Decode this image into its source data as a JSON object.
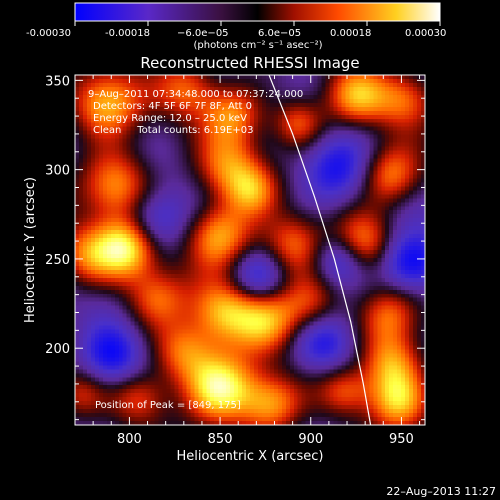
{
  "chart_data": {
    "type": "heatmap",
    "title": "Reconstructed RHESSI Image",
    "xlabel": "Heliocentric X (arcsec)",
    "ylabel": "Heliocentric Y (arcsec)",
    "xlim": [
      770,
      963
    ],
    "ylim": [
      157,
      353
    ],
    "x_ticks": [
      {
        "value": 800,
        "label": "800"
      },
      {
        "value": 850,
        "label": "850"
      },
      {
        "value": 900,
        "label": "900"
      },
      {
        "value": 950,
        "label": "950"
      }
    ],
    "y_ticks": [
      {
        "value": 200,
        "label": "200"
      },
      {
        "value": 250,
        "label": "250"
      },
      {
        "value": 300,
        "label": "300"
      },
      {
        "value": 350,
        "label": "350"
      }
    ],
    "colorbar": {
      "range": [
        -0.0003,
        0.0003
      ],
      "tick_labels": [
        "-0.00030",
        "-0.00018",
        "−6.0e−05",
        "6.0e−05",
        "0.00018",
        "0.00030"
      ],
      "unit_label": "(photons cm⁻² s⁻¹ asec⁻²)",
      "colors": [
        "#0000ff",
        "#6a2dc8",
        "#000000",
        "#ff4a00",
        "#ffff40",
        "#ffffff"
      ]
    },
    "annotations": [
      "9–Aug–2011 07:34:48.000 to 07:37:24.000",
      "Detectors: 4F 5F 6F 7F 8F, Att 0",
      "Energy Range: 12.0 – 25.0 keV",
      "Clean     Total counts: 6.19E+03",
      "Position of Peak = [849, 175]"
    ],
    "limb_curve": [
      [
        877,
        353
      ],
      [
        890,
        320
      ],
      [
        902,
        285
      ],
      [
        913,
        250
      ],
      [
        922,
        215
      ],
      [
        929,
        180
      ],
      [
        933,
        157
      ]
    ],
    "blobs": [
      {
        "x": 787,
        "y": 337,
        "amp": 1.0,
        "w": 14
      },
      {
        "x": 832,
        "y": 346,
        "amp": 0.7,
        "w": 12
      },
      {
        "x": 857,
        "y": 331,
        "amp": 0.8,
        "w": 12
      },
      {
        "x": 925,
        "y": 341,
        "amp": 0.85,
        "w": 12
      },
      {
        "x": 952,
        "y": 340,
        "amp": 0.7,
        "w": 12
      },
      {
        "x": 793,
        "y": 291,
        "amp": 0.9,
        "w": 14
      },
      {
        "x": 856,
        "y": 301,
        "amp": 0.75,
        "w": 13
      },
      {
        "x": 893,
        "y": 326,
        "amp": 0.7,
        "w": 10
      },
      {
        "x": 944,
        "y": 297,
        "amp": 0.85,
        "w": 12
      },
      {
        "x": 914,
        "y": 300,
        "amp": -0.6,
        "w": 13
      },
      {
        "x": 928,
        "y": 258,
        "amp": 0.85,
        "w": 12
      },
      {
        "x": 955,
        "y": 248,
        "amp": -0.9,
        "w": 12
      },
      {
        "x": 916,
        "y": 250,
        "amp": -0.7,
        "w": 10
      },
      {
        "x": 814,
        "y": 272,
        "amp": -0.6,
        "w": 12
      },
      {
        "x": 775,
        "y": 252,
        "amp": 0.7,
        "w": 12
      },
      {
        "x": 798,
        "y": 256,
        "amp": 1.15,
        "w": 12
      },
      {
        "x": 850,
        "y": 263,
        "amp": 1.0,
        "w": 13
      },
      {
        "x": 868,
        "y": 288,
        "amp": 0.6,
        "w": 10
      },
      {
        "x": 890,
        "y": 258,
        "amp": 0.7,
        "w": 12
      },
      {
        "x": 815,
        "y": 228,
        "amp": 0.7,
        "w": 12
      },
      {
        "x": 852,
        "y": 220,
        "amp": 0.9,
        "w": 13
      },
      {
        "x": 876,
        "y": 215,
        "amp": 0.75,
        "w": 12
      },
      {
        "x": 899,
        "y": 225,
        "amp": 0.7,
        "w": 12
      },
      {
        "x": 944,
        "y": 218,
        "amp": 0.75,
        "w": 12
      },
      {
        "x": 870,
        "y": 240,
        "amp": -0.5,
        "w": 10
      },
      {
        "x": 790,
        "y": 195,
        "amp": -0.7,
        "w": 12
      },
      {
        "x": 830,
        "y": 198,
        "amp": 0.75,
        "w": 12
      },
      {
        "x": 907,
        "y": 203,
        "amp": -0.6,
        "w": 12
      },
      {
        "x": 945,
        "y": 192,
        "amp": 0.85,
        "w": 12
      },
      {
        "x": 948,
        "y": 170,
        "amp": 0.9,
        "w": 12
      },
      {
        "x": 851,
        "y": 178,
        "amp": 1.3,
        "w": 14
      },
      {
        "x": 878,
        "y": 168,
        "amp": 0.9,
        "w": 12
      },
      {
        "x": 806,
        "y": 172,
        "amp": 0.6,
        "w": 11
      },
      {
        "x": 919,
        "y": 176,
        "amp": 0.6,
        "w": 10
      },
      {
        "x": 772,
        "y": 174,
        "amp": 0.5,
        "w": 10
      }
    ]
  },
  "footer": {
    "timestamp": "22–Aug–2013 11:27"
  }
}
